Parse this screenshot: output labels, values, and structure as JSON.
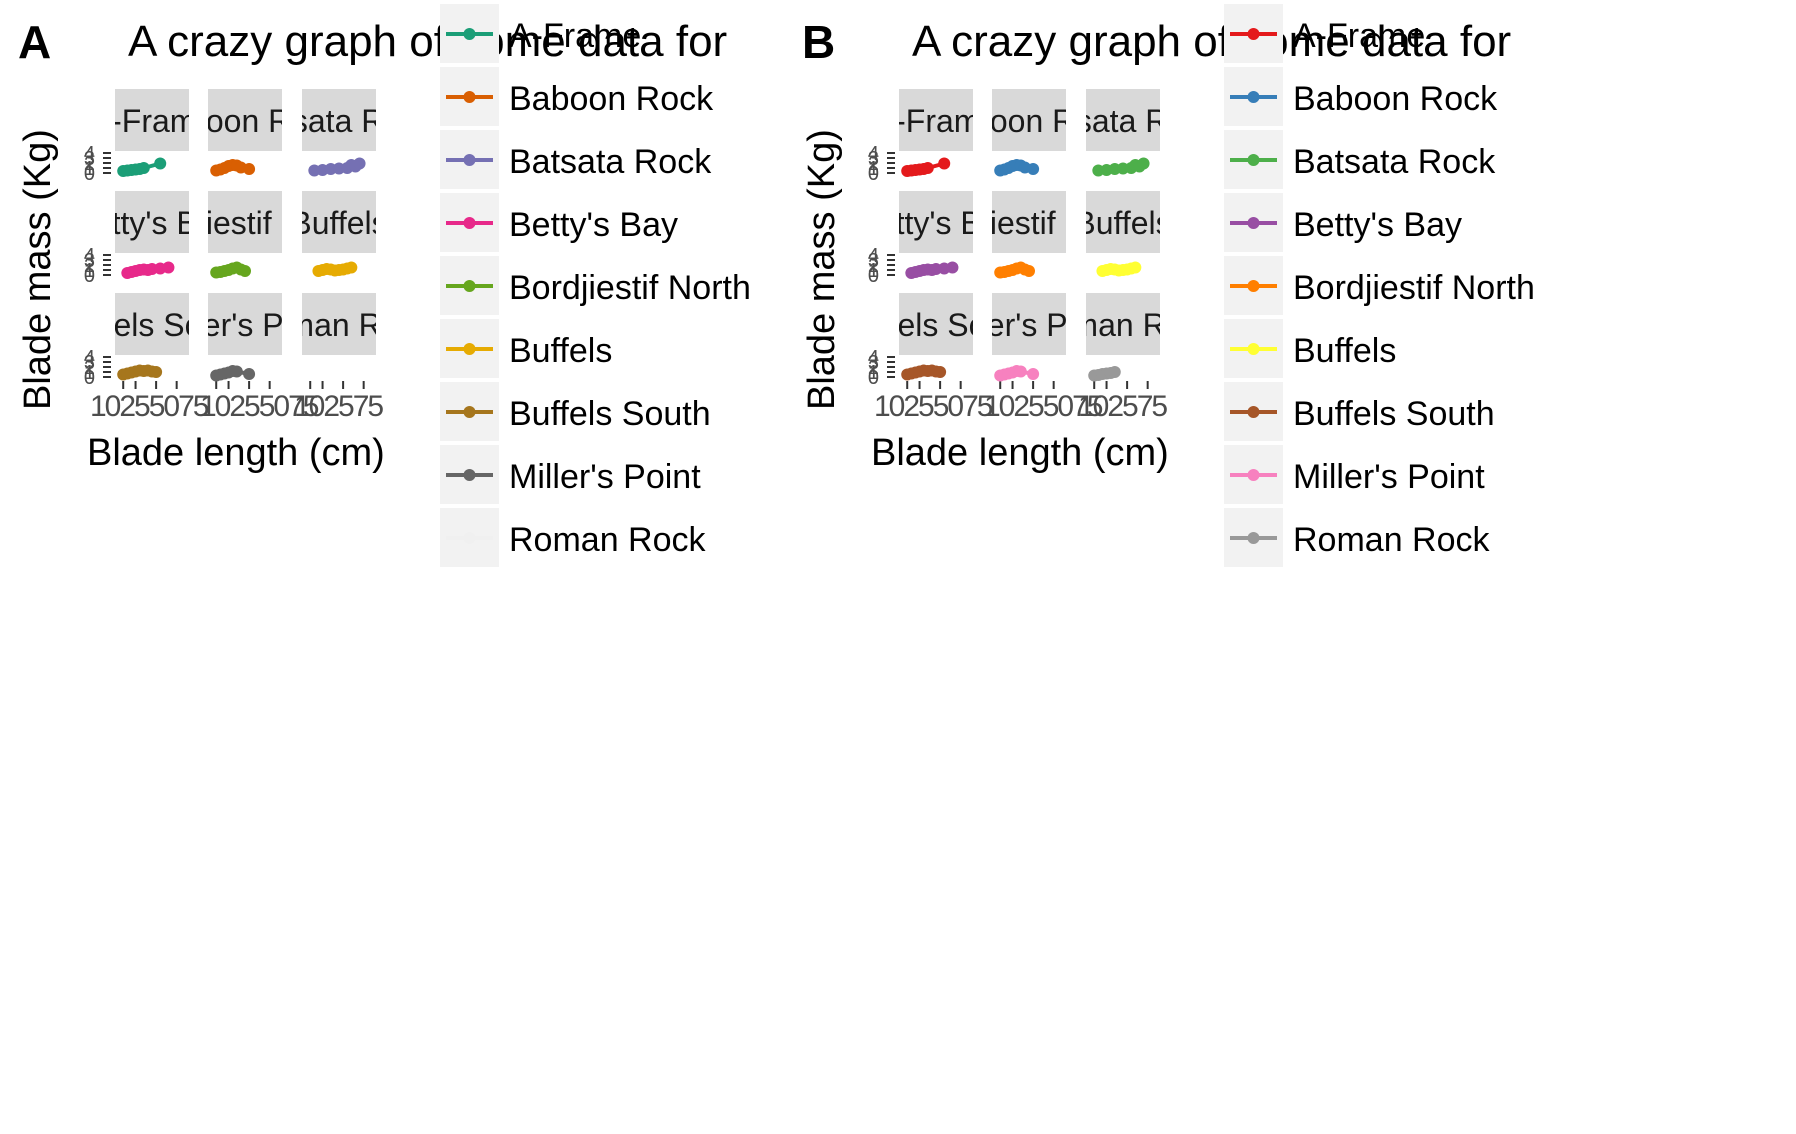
{
  "chart_data": [
    {
      "panel_tag": "A",
      "type": "line",
      "title": "A crazy graph of some data for",
      "xlabel": "Blade length (cm)",
      "ylabel": "Blade mass (Kg)",
      "x_ticks": [
        "10",
        "25",
        "50",
        "75"
      ],
      "y_ticks": [
        "0",
        "1",
        "2",
        "3",
        "4"
      ],
      "xlim": [
        0,
        90
      ],
      "ylim": [
        0,
        4
      ],
      "facet_labels": [
        "A-Frame",
        "Baboon Rock",
        "Batsata Rock",
        "Betty's Bay",
        "Bordjiestif North",
        "Buffels",
        "Buffels South",
        "Miller's Point",
        "Roman Rock"
      ],
      "legend_position": "right",
      "series": [
        {
          "name": "A-Frame",
          "color": "#1b9e77",
          "x": [
            10,
            15,
            20,
            25,
            30,
            35,
            55
          ],
          "y": [
            0.4,
            0.5,
            0.6,
            0.7,
            0.8,
            1.0,
            1.9
          ]
        },
        {
          "name": "Baboon Rock",
          "color": "#d95f02",
          "x": [
            10,
            15,
            20,
            25,
            30,
            35,
            40,
            50
          ],
          "y": [
            0.5,
            0.7,
            1.0,
            1.4,
            1.6,
            1.5,
            1.1,
            0.8
          ]
        },
        {
          "name": "Batsata Rock",
          "color": "#7570b3",
          "x": [
            15,
            25,
            35,
            45,
            55,
            60,
            65,
            70
          ],
          "y": [
            0.5,
            0.6,
            0.8,
            0.9,
            1.0,
            1.6,
            1.3,
            1.9
          ]
        },
        {
          "name": "Betty's Bay",
          "color": "#e7298a",
          "x": [
            15,
            20,
            25,
            30,
            35,
            40,
            45,
            55,
            65
          ],
          "y": [
            0.4,
            0.6,
            0.8,
            1.0,
            1.1,
            1.0,
            1.2,
            1.3,
            1.5
          ]
        },
        {
          "name": "Bordjiestif North",
          "color": "#66a61e",
          "x": [
            10,
            15,
            20,
            25,
            30,
            35,
            40,
            45
          ],
          "y": [
            0.5,
            0.6,
            0.8,
            1.0,
            1.3,
            1.5,
            1.1,
            0.8
          ]
        },
        {
          "name": "Buffels",
          "color": "#e6ab02",
          "x": [
            20,
            25,
            30,
            35,
            40,
            45,
            50,
            55,
            60
          ],
          "y": [
            0.8,
            1.0,
            1.2,
            1.1,
            0.9,
            1.0,
            1.1,
            1.3,
            1.5
          ]
        },
        {
          "name": "Buffels South",
          "color": "#a6761d",
          "x": [
            10,
            15,
            20,
            25,
            30,
            35,
            40,
            45,
            50
          ],
          "y": [
            0.5,
            0.7,
            0.9,
            1.1,
            1.3,
            1.2,
            1.3,
            1.1,
            1.0
          ]
        },
        {
          "name": "Miller's Point",
          "color": "#666666",
          "x": [
            10,
            15,
            20,
            25,
            30,
            35,
            50
          ],
          "y": [
            0.3,
            0.5,
            0.7,
            0.9,
            1.2,
            1.1,
            0.6
          ]
        },
        {
          "name": "Roman Rock",
          "color": "#f0f0f0",
          "x": [],
          "y": []
        }
      ]
    },
    {
      "panel_tag": "B",
      "type": "line",
      "title": "A crazy graph of some data for",
      "xlabel": "Blade length (cm)",
      "ylabel": "Blade mass (Kg)",
      "x_ticks": [
        "10",
        "25",
        "50",
        "75"
      ],
      "y_ticks": [
        "0",
        "1",
        "2",
        "3",
        "4"
      ],
      "xlim": [
        0,
        90
      ],
      "ylim": [
        0,
        4
      ],
      "facet_labels": [
        "A-Frame",
        "Baboon Rock",
        "Batsata Rock",
        "Betty's Bay",
        "Bordjiestif North",
        "Buffels",
        "Buffels South",
        "Miller's Point",
        "Roman Rock"
      ],
      "legend_position": "right",
      "series": [
        {
          "name": "A-Frame",
          "color": "#e41a1c",
          "x": [
            10,
            15,
            20,
            25,
            30,
            35,
            55
          ],
          "y": [
            0.4,
            0.5,
            0.6,
            0.7,
            0.8,
            1.0,
            1.9
          ]
        },
        {
          "name": "Baboon Rock",
          "color": "#377eb8",
          "x": [
            10,
            15,
            20,
            25,
            30,
            35,
            40,
            50
          ],
          "y": [
            0.5,
            0.7,
            1.0,
            1.4,
            1.6,
            1.5,
            1.1,
            0.8
          ]
        },
        {
          "name": "Batsata Rock",
          "color": "#4daf4a",
          "x": [
            15,
            25,
            35,
            45,
            55,
            60,
            65,
            70
          ],
          "y": [
            0.5,
            0.6,
            0.8,
            0.9,
            1.0,
            1.6,
            1.3,
            1.9
          ]
        },
        {
          "name": "Betty's Bay",
          "color": "#984ea3",
          "x": [
            15,
            20,
            25,
            30,
            35,
            40,
            45,
            55,
            65
          ],
          "y": [
            0.4,
            0.6,
            0.8,
            1.0,
            1.1,
            1.0,
            1.2,
            1.3,
            1.5
          ]
        },
        {
          "name": "Bordjiestif North",
          "color": "#ff7f00",
          "x": [
            10,
            15,
            20,
            25,
            30,
            35,
            40,
            45
          ],
          "y": [
            0.5,
            0.6,
            0.8,
            1.0,
            1.3,
            1.5,
            1.1,
            0.8
          ]
        },
        {
          "name": "Buffels",
          "color": "#ffff33",
          "x": [
            20,
            25,
            30,
            35,
            40,
            45,
            50,
            55,
            60
          ],
          "y": [
            0.8,
            1.0,
            1.2,
            1.1,
            0.9,
            1.0,
            1.1,
            1.3,
            1.5
          ]
        },
        {
          "name": "Buffels South",
          "color": "#a65628",
          "x": [
            10,
            15,
            20,
            25,
            30,
            35,
            40,
            45,
            50
          ],
          "y": [
            0.5,
            0.7,
            0.9,
            1.1,
            1.3,
            1.2,
            1.3,
            1.1,
            1.0
          ]
        },
        {
          "name": "Miller's Point",
          "color": "#f781bf",
          "x": [
            10,
            15,
            20,
            25,
            30,
            35,
            50
          ],
          "y": [
            0.3,
            0.5,
            0.7,
            0.9,
            1.2,
            1.1,
            0.6
          ]
        },
        {
          "name": "Roman Rock",
          "color": "#999999",
          "x": [
            10,
            15,
            20,
            25,
            30,
            35
          ],
          "y": [
            0.3,
            0.4,
            0.6,
            0.7,
            0.8,
            1.0
          ]
        }
      ]
    }
  ]
}
